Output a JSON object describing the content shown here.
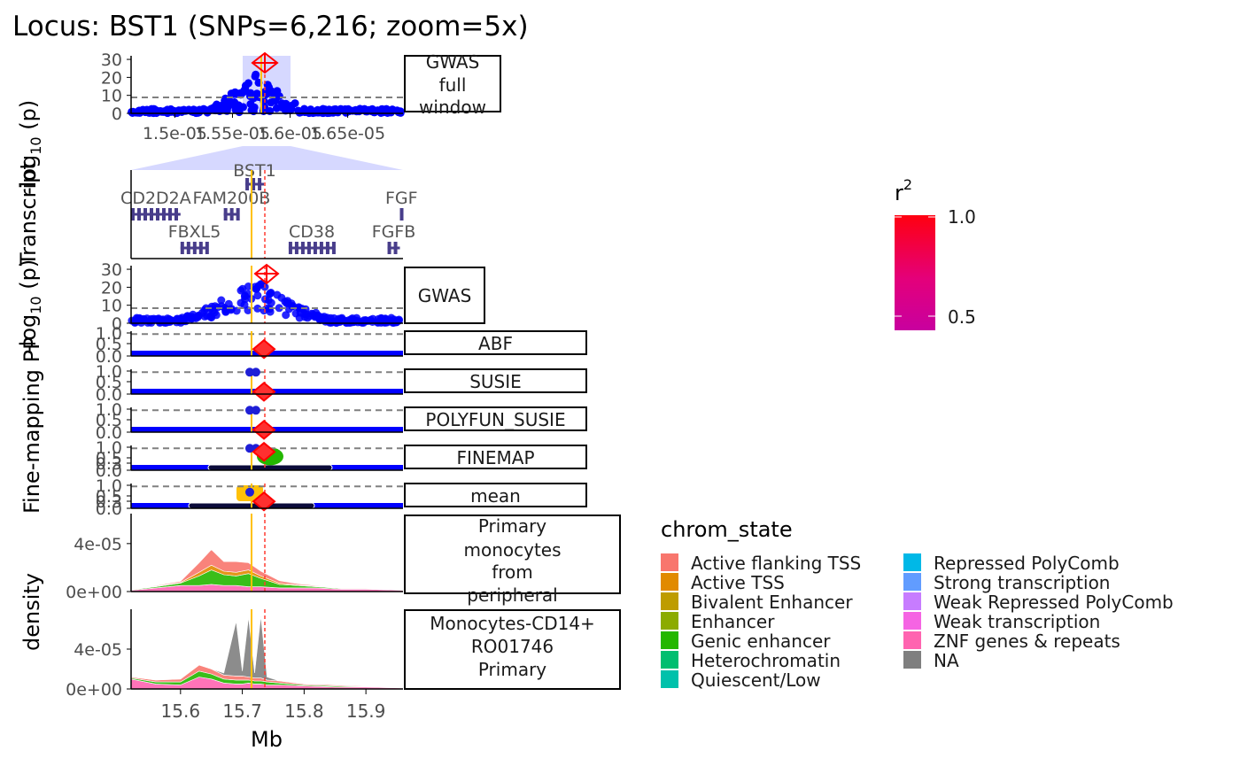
{
  "title": "Locus: BST1   (SNPs=6,216; zoom=5x)",
  "colors": {
    "snp": "#0000ff",
    "lead_snp": "#ff0000",
    "consensus_line": "#ffc107",
    "zoom_band": "#d6d8ff",
    "gene": "#483d8b",
    "threshold": "#808080"
  },
  "chart_data": [
    {
      "type": "scatter",
      "panel": "GWAS full window",
      "strip_label": [
        "GWAS",
        "full",
        "window"
      ],
      "ylabel": "-log10 (p)",
      "xticks": [
        "1.5e-05",
        "1.55e-05",
        "1.6e-05",
        "1.65e-05"
      ],
      "yticks": [
        0,
        10,
        20,
        30
      ],
      "ylim": [
        0,
        32
      ],
      "xlim": [
        1.462e-05,
        1.698e-05
      ],
      "zoom_window": [
        1.546e-05,
        1.59e-05
      ],
      "threshold": 7.3,
      "lead_snp": {
        "x": 1.571e-05,
        "y": 28
      }
    },
    {
      "type": "table",
      "panel": "Transcript",
      "ylabel": "Transcript",
      "genes": [
        {
          "name": "BST1",
          "start": 15.705,
          "end": 15.735,
          "row": 0
        },
        {
          "name": "CD2D2A",
          "start": 15.52,
          "end": 15.6,
          "row": 1
        },
        {
          "name": "FAM200B",
          "start": 15.67,
          "end": 15.695,
          "row": 1
        },
        {
          "name": "FGF",
          "start": 15.955,
          "end": 15.96,
          "row": 1
        },
        {
          "name": "FBXL5",
          "start": 15.6,
          "end": 15.645,
          "row": 2
        },
        {
          "name": "CD38",
          "start": 15.775,
          "end": 15.85,
          "row": 2
        },
        {
          "name": "FGFB",
          "start": 15.935,
          "end": 15.955,
          "row": 2
        }
      ]
    },
    {
      "type": "scatter",
      "panel": "GWAS",
      "strip_label": [
        "GWAS"
      ],
      "ylabel": "-log10 (p)",
      "yticks": [
        0,
        10,
        20,
        30
      ],
      "ylim": [
        0,
        32
      ],
      "threshold": 7.3,
      "lead_snp": {
        "x": 15.735,
        "y": 28
      }
    },
    {
      "type": "scatter",
      "panel": "ABF",
      "strip_label": [
        "ABF"
      ],
      "ylabel": "Fine-mapping PP",
      "yticks": [
        "0.0",
        "0.5",
        "1.0"
      ],
      "ylim": [
        0,
        1
      ],
      "credible_snps": [],
      "lead_snp": {
        "x": 15.735,
        "y": 0.3
      }
    },
    {
      "type": "scatter",
      "panel": "SUSIE",
      "strip_label": [
        "SUSIE"
      ],
      "ylabel": "Fine-mapping PP",
      "yticks": [
        "0.0",
        "0.5",
        "1.0"
      ],
      "ylim": [
        0,
        1
      ],
      "credible_snps": [
        {
          "x": 15.712,
          "y": 0.95
        },
        {
          "x": 15.722,
          "y": 0.95
        }
      ],
      "lead_snp": {
        "x": 15.735,
        "y": 0.1
      }
    },
    {
      "type": "scatter",
      "panel": "POLYFUN_SUSIE",
      "strip_label": [
        "POLYFUN_SUSIE"
      ],
      "ylabel": "Fine-mapping PP",
      "yticks": [
        "0.0",
        "0.5",
        "1.0"
      ],
      "ylim": [
        0,
        1
      ],
      "credible_snps": [
        {
          "x": 15.712,
          "y": 0.95
        },
        {
          "x": 15.722,
          "y": 0.95
        }
      ],
      "lead_snp": {
        "x": 15.735,
        "y": 0.1
      }
    },
    {
      "type": "scatter",
      "panel": "FINEMAP",
      "strip_label": [
        "FINEMAP"
      ],
      "ylabel": "Fine-mapping PP",
      "yticks": [
        "0.0",
        "0.3",
        "0.5",
        "1.0"
      ],
      "ylim": [
        0,
        1
      ],
      "credible_snps": [
        {
          "x": 15.712,
          "y": 0.95
        },
        {
          "x": 15.722,
          "y": 0.95
        }
      ],
      "lead_snp": {
        "x": 15.735,
        "y": 0.8
      }
    },
    {
      "type": "scatter",
      "panel": "mean",
      "strip_label": [
        "mean"
      ],
      "ylabel": "Fine-mapping PP",
      "yticks": [
        "0.0",
        "0.3",
        "0.5",
        "1.0"
      ],
      "ylim": [
        0,
        1
      ],
      "credible_snps": [
        {
          "x": 15.712,
          "y": 0.7
        }
      ],
      "lead_snp": {
        "x": 15.735,
        "y": 0.3
      }
    },
    {
      "type": "area",
      "panel": "Primary monocytes from peripheral blood",
      "strip_label": [
        "Primary",
        "monocytes",
        "from",
        "peripheral"
      ],
      "ylabel": "density",
      "yticks": [
        "0e+00",
        "4e-05"
      ],
      "ylim": [
        0,
        6.5e-05
      ],
      "x": [
        15.52,
        15.56,
        15.6,
        15.63,
        15.65,
        15.67,
        15.69,
        15.71,
        15.73,
        15.76,
        15.79,
        15.82,
        15.86,
        15.9,
        15.96
      ],
      "series": [
        {
          "name": "ZNF genes & repeats",
          "values": [
            1e-06,
            3e-06,
            5e-06,
            5e-06,
            6e-06,
            5e-06,
            5e-06,
            4e-06,
            4e-06,
            3e-06,
            3e-06,
            3e-06,
            2e-06,
            2e-06,
            1e-06
          ]
        },
        {
          "name": "Genic enhancer",
          "values": [
            5e-07,
            1e-06,
            2e-06,
            8e-06,
            1.2e-05,
            9e-06,
            8e-06,
            1.1e-05,
            7e-06,
            3e-06,
            2e-06,
            1e-06,
            5e-07,
            5e-07,
            2e-07
          ]
        },
        {
          "name": "Active TSS",
          "values": [
            2e-07,
            5e-07,
            5e-07,
            3e-06,
            4e-06,
            3e-06,
            3e-06,
            3e-06,
            2e-06,
            1e-06,
            5e-07,
            5e-07,
            2e-07,
            2e-07,
            1e-07
          ]
        },
        {
          "name": "Active flanking TSS",
          "values": [
            2e-07,
            5e-07,
            1e-06,
            8e-06,
            1.3e-05,
            8e-06,
            9e-06,
            6e-06,
            4e-06,
            2e-06,
            1e-06,
            5e-07,
            2e-07,
            2e-07,
            1e-07
          ]
        }
      ]
    },
    {
      "type": "area",
      "panel": "Monocytes-CD14+ RO01746 Primary Cells",
      "strip_label": [
        "Monocytes-CD14+",
        "RO01746",
        "Primary"
      ],
      "ylabel": "density",
      "yticks": [
        "0e+00",
        "4e-05"
      ],
      "ylim": [
        0,
        8e-05
      ],
      "x": [
        15.52,
        15.56,
        15.6,
        15.63,
        15.65,
        15.67,
        15.69,
        15.7,
        15.71,
        15.72,
        15.73,
        15.74,
        15.76,
        15.8,
        15.85,
        15.9,
        15.96
      ],
      "series": [
        {
          "name": "ZNF genes & repeats",
          "values": [
            1e-05,
            5e-06,
            4e-06,
            1.2e-05,
            1e-05,
            6e-06,
            5e-06,
            5e-06,
            6e-06,
            5e-06,
            5e-06,
            4e-06,
            4e-06,
            3e-06,
            2e-06,
            2e-06,
            1e-06
          ]
        },
        {
          "name": "Genic enhancer",
          "values": [
            1e-06,
            2e-06,
            3e-06,
            6e-06,
            5e-06,
            4e-06,
            4e-06,
            4e-06,
            3e-06,
            3e-06,
            3e-06,
            3e-06,
            2e-06,
            1e-06,
            1e-06,
            5e-07,
            5e-07
          ]
        },
        {
          "name": "Active flanking TSS",
          "values": [
            1e-06,
            2e-06,
            3e-06,
            6e-06,
            5e-06,
            4e-06,
            4e-06,
            4e-06,
            3e-06,
            3e-06,
            3e-06,
            2e-06,
            2e-06,
            1e-06,
            1e-06,
            5e-07,
            5e-07
          ]
        },
        {
          "name": "NA",
          "values": [
            0,
            0,
            0,
            0,
            0,
            2e-06,
            5.5e-05,
            5e-06,
            6e-05,
            5e-06,
            6.2e-05,
            3e-06,
            0,
            0,
            0,
            0,
            0
          ]
        }
      ]
    }
  ],
  "x_axis": {
    "label": "Mb",
    "ticks": [
      "15.6",
      "15.7",
      "15.8",
      "15.9"
    ],
    "xlim": [
      15.52,
      15.96
    ],
    "consensus_snp": 15.712,
    "lead_snp": 15.735
  },
  "y_axis_labels": {
    "gwas_full": "-log10 (p)",
    "transcript": "Transcript",
    "gwas": "-log10 (p)",
    "finemap": "Fine-mapping PP",
    "density": "density",
    "gwas_full_text": "-log",
    "gwas_full_sub": "10",
    "gwas_full_tail": " (p)",
    "transcript_text": "Transcript",
    "finemap_text": "Fine-mapping PP",
    "density_text": "density"
  },
  "legend_r2": {
    "title": "r",
    "sup": "2",
    "ticks": [
      "1.0",
      "0.5"
    ],
    "gradient": [
      "#ff0010",
      "#e4007a",
      "#c8009f"
    ]
  },
  "legend_chrom": {
    "title": "chrom_state",
    "col1": [
      {
        "label": "Active flanking TSS",
        "color": "#f8766d"
      },
      {
        "label": "Active TSS",
        "color": "#e18a00"
      },
      {
        "label": "Bivalent Enhancer",
        "color": "#be9c00"
      },
      {
        "label": "Enhancer",
        "color": "#8cab00"
      },
      {
        "label": "Genic enhancer",
        "color": "#24b700"
      },
      {
        "label": "Heterochromatin",
        "color": "#00be70"
      },
      {
        "label": "Quiescent/Low",
        "color": "#00c1ab"
      }
    ],
    "col2": [
      {
        "label": "Repressed PolyComb",
        "color": "#00b8e7"
      },
      {
        "label": "Strong transcription",
        "color": "#619cff"
      },
      {
        "label": "Weak Repressed PolyComb",
        "color": "#c77cff"
      },
      {
        "label": "Weak transcription",
        "color": "#f564e3"
      },
      {
        "label": "ZNF genes & repeats",
        "color": "#ff64b0"
      },
      {
        "label": "NA",
        "color": "#7f7f7f"
      }
    ]
  }
}
